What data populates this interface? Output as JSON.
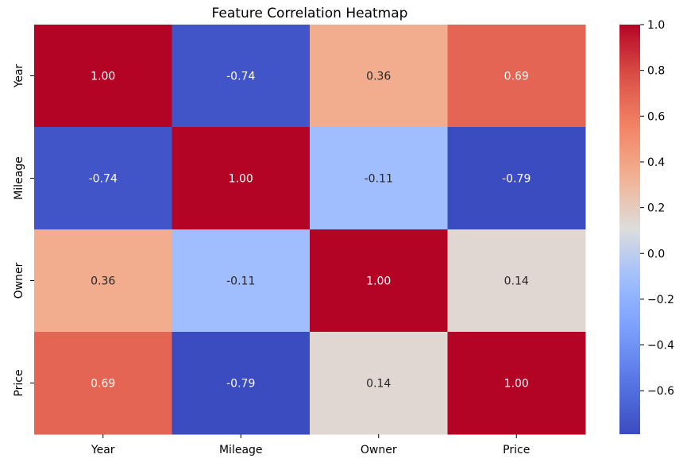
{
  "chart_data": {
    "type": "heatmap",
    "title": "Feature Correlation Heatmap",
    "x_categories": [
      "Year",
      "Mileage",
      "Owner",
      "Price"
    ],
    "y_categories": [
      "Year",
      "Mileage",
      "Owner",
      "Price"
    ],
    "values": [
      [
        1.0,
        -0.74,
        0.36,
        0.69
      ],
      [
        -0.74,
        1.0,
        -0.11,
        -0.79
      ],
      [
        0.36,
        -0.11,
        1.0,
        0.14
      ],
      [
        0.69,
        -0.79,
        0.14,
        1.0
      ]
    ],
    "cell_labels": [
      [
        "1.00",
        "-0.74",
        "0.36",
        "0.69"
      ],
      [
        "-0.74",
        "1.00",
        "-0.11",
        "-0.79"
      ],
      [
        "0.36",
        "-0.11",
        "1.00",
        "0.14"
      ],
      [
        "0.69",
        "-0.79",
        "0.14",
        "1.00"
      ]
    ],
    "colormap": "coolwarm",
    "color_range": [
      -0.79,
      1.0
    ],
    "colorbar": {
      "ticks": [
        -0.6,
        -0.4,
        -0.2,
        0.0,
        0.2,
        0.4,
        0.6,
        0.8,
        1.0
      ],
      "tick_labels": [
        "−0.6",
        "−0.4",
        "−0.2",
        "0.0",
        "0.2",
        "0.4",
        "0.6",
        "0.8",
        "1.0"
      ]
    },
    "legend_position": "right"
  }
}
